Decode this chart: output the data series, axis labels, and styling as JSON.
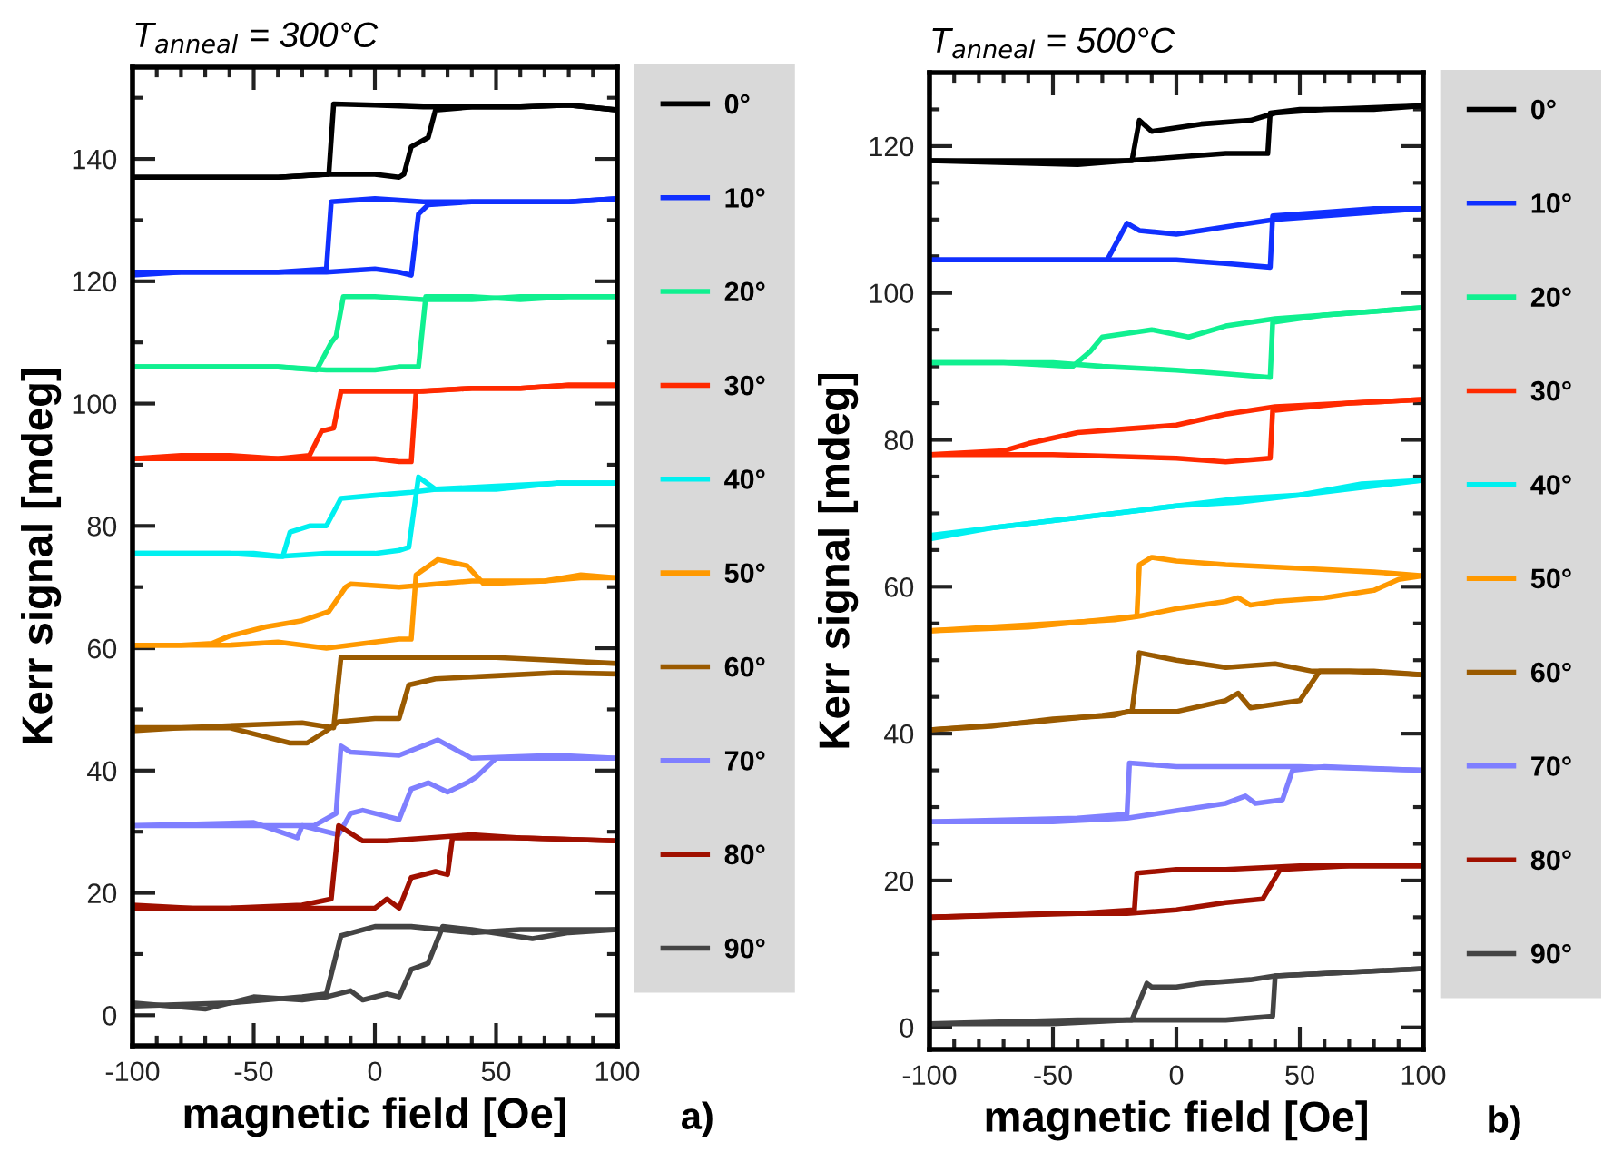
{
  "chart_data": [
    {
      "type": "line",
      "title": "T$_{anneal}$ = 300°C",
      "xlabel": "magnetic field [Oe]",
      "ylabel": "Kerr signal [mdeg]",
      "annotations": [
        "a)"
      ],
      "xlim": [
        -100,
        100
      ],
      "xticks": [
        -100,
        {
          "value": -90,
          "label": null
        },
        {
          "value": -80,
          "label": null
        },
        {
          "value": -70,
          "label": null
        },
        {
          "value": -60,
          "label": null
        },
        -50,
        {
          "value": -40,
          "label": null
        },
        {
          "value": -30,
          "label": null
        },
        {
          "value": -20,
          "label": null
        },
        {
          "value": -10,
          "label": null
        },
        0,
        {
          "value": 10,
          "label": null
        },
        {
          "value": 20,
          "label": null
        },
        {
          "value": 30,
          "label": null
        },
        {
          "value": 40,
          "label": null
        },
        50,
        {
          "value": 60,
          "label": null
        },
        {
          "value": 70,
          "label": null
        },
        {
          "value": 80,
          "label": null
        },
        {
          "value": 90,
          "label": null
        },
        100
      ],
      "ylim": [
        -5,
        155
      ],
      "yticks": [
        0,
        {
          "value": 10,
          "label": null
        },
        20,
        {
          "value": 30,
          "label": null
        },
        40,
        {
          "value": 50,
          "label": null
        },
        60,
        {
          "value": 70,
          "label": null
        },
        80,
        {
          "value": 90,
          "label": null
        },
        100,
        {
          "value": 110,
          "label": null
        },
        120,
        {
          "value": 130,
          "label": null
        },
        140,
        {
          "value": 150,
          "label": null
        }
      ],
      "grid": false,
      "legend": "right",
      "marker": "none",
      "line_style": "solid",
      "series": [
        {
          "name": "0°",
          "color": "#000000",
          "x": [
            -100,
            -80,
            -60,
            -40,
            -20,
            0,
            10,
            12,
            15,
            22,
            25,
            40,
            60,
            80,
            100
          ],
          "values": [
            137,
            137,
            137,
            137,
            137.5,
            137.5,
            137,
            137.5,
            142,
            143.5,
            148,
            148.5,
            148.5,
            148.8,
            148
          ]
        },
        {
          "color": "#000000",
          "x": [
            -100,
            -80,
            -60,
            -40,
            -19,
            -17,
            0,
            20,
            40,
            60,
            80,
            100
          ],
          "values": [
            137,
            137,
            137,
            137,
            137.5,
            149,
            148.8,
            148.5,
            148.5,
            148.5,
            148.8,
            148
          ]
        },
        {
          "name": "10°",
          "color": "#1030ff",
          "x": [
            -100,
            -80,
            -60,
            -40,
            -20,
            0,
            10,
            15,
            18,
            22,
            40,
            60,
            80,
            100
          ],
          "values": [
            121,
            121.5,
            121.5,
            121.5,
            121.5,
            122,
            121.5,
            121,
            131,
            132.5,
            133,
            133,
            133,
            133.5
          ]
        },
        {
          "color": "#1030ff",
          "x": [
            -100,
            -80,
            -60,
            -40,
            -20,
            -18,
            0,
            20,
            40,
            60,
            80,
            100
          ],
          "values": [
            121.5,
            121.5,
            121.5,
            121.5,
            122,
            133,
            133.5,
            133,
            133,
            133,
            133,
            133.5
          ]
        },
        {
          "name": "20°",
          "color": "#10f090",
          "x": [
            -100,
            -80,
            -60,
            -40,
            -20,
            0,
            10,
            18,
            21,
            40,
            60,
            80,
            100
          ],
          "values": [
            106,
            106,
            106,
            106,
            105.5,
            105.5,
            106,
            106,
            117.5,
            117.5,
            117,
            117.5,
            117.5
          ]
        },
        {
          "color": "#10f090",
          "x": [
            -100,
            -80,
            -60,
            -40,
            -24,
            -18,
            -16,
            -13,
            0,
            20,
            40,
            60,
            80,
            100
          ],
          "values": [
            106,
            106,
            106,
            106,
            105.5,
            110,
            111,
            117.5,
            117.5,
            117,
            117,
            117.5,
            117.5,
            117.5
          ]
        },
        {
          "name": "30°",
          "color": "#ff2a00",
          "x": [
            -100,
            -80,
            -60,
            -40,
            -20,
            0,
            10,
            15,
            17,
            40,
            60,
            80,
            100
          ],
          "values": [
            91,
            91.5,
            91.5,
            91,
            91,
            91,
            90.5,
            90.5,
            102,
            102.5,
            102.5,
            103,
            103
          ]
        },
        {
          "color": "#ff2a00",
          "x": [
            -100,
            -80,
            -60,
            -40,
            -27,
            -22,
            -17,
            -14,
            0,
            20,
            40,
            60,
            80,
            100
          ],
          "values": [
            91,
            91,
            91,
            91,
            91.5,
            95.5,
            96,
            102,
            102,
            102,
            102.5,
            102.5,
            103,
            103
          ]
        },
        {
          "name": "40°",
          "color": "#00f0f0",
          "x": [
            -100,
            -80,
            -60,
            -40,
            -20,
            0,
            10,
            14,
            18,
            25,
            50,
            75,
            100
          ],
          "values": [
            75.5,
            75.5,
            75.5,
            75,
            75.5,
            75.5,
            76,
            76.5,
            88,
            86,
            86.5,
            87,
            87
          ]
        },
        {
          "color": "#00f0f0",
          "x": [
            -100,
            -75,
            -50,
            -38,
            -35,
            -27,
            -20,
            -14,
            0,
            15,
            25,
            50,
            75,
            100
          ],
          "values": [
            75.5,
            75.5,
            75.5,
            75,
            79,
            80,
            80,
            84.5,
            85,
            85.5,
            86,
            86,
            87,
            87
          ]
        },
        {
          "name": "50°",
          "color": "#ff9900",
          "x": [
            -100,
            -80,
            -60,
            -40,
            -20,
            0,
            10,
            15,
            17,
            26,
            38,
            45,
            70,
            85,
            100
          ],
          "values": [
            60.5,
            60.5,
            60.5,
            61,
            60,
            61,
            61.5,
            61.5,
            72,
            74.5,
            73.5,
            70.5,
            71,
            72,
            71.5
          ]
        },
        {
          "color": "#ff9900",
          "x": [
            -100,
            -80,
            -67,
            -60,
            -45,
            -30,
            -19,
            -12,
            -10,
            10,
            40,
            70,
            85,
            100
          ],
          "values": [
            60.5,
            60.5,
            60.8,
            62,
            63.5,
            64.5,
            66,
            70,
            70.5,
            70,
            71,
            71,
            71.5,
            71.5
          ]
        },
        {
          "name": "60°",
          "color": "#9a5a00",
          "x": [
            -100,
            -80,
            -60,
            -50,
            -35,
            -28,
            -20,
            -15,
            0,
            10,
            14,
            25,
            50,
            75,
            100
          ],
          "values": [
            47,
            47,
            47,
            46,
            44.5,
            44.5,
            46.5,
            48,
            48.5,
            48.5,
            54,
            55,
            55.5,
            56,
            55.8
          ]
        },
        {
          "color": "#9a5a00",
          "x": [
            -100,
            -80,
            -50,
            -30,
            -17,
            -14,
            0,
            25,
            50,
            75,
            100
          ],
          "values": [
            46.5,
            47,
            47.5,
            47.8,
            47,
            58.5,
            58.5,
            58.5,
            58.5,
            58,
            57.5
          ]
        },
        {
          "name": "70°",
          "color": "#7f7fff",
          "x": [
            -100,
            -50,
            -32,
            -30,
            -15,
            -10,
            -5,
            5,
            10,
            12,
            15,
            22,
            30,
            38,
            42,
            50,
            75,
            100
          ],
          "values": [
            31,
            31.5,
            29,
            31,
            29.5,
            33,
            33.5,
            32.5,
            32,
            34,
            37,
            38,
            36.5,
            38,
            39,
            42,
            42,
            42
          ]
        },
        {
          "color": "#7f7fff",
          "x": [
            -100,
            -50,
            -25,
            -16,
            -14,
            -10,
            10,
            26,
            40,
            75,
            100
          ],
          "values": [
            31,
            31,
            31,
            33,
            44,
            43,
            42.5,
            45,
            42,
            42.5,
            42
          ]
        },
        {
          "name": "80°",
          "color": "#a01000",
          "x": [
            -100,
            -75,
            -50,
            -20,
            0,
            5,
            10,
            15,
            25,
            30,
            32,
            60,
            100
          ],
          "values": [
            18,
            17.5,
            17.5,
            17.5,
            17.5,
            19,
            17.5,
            22.5,
            23.5,
            23,
            29,
            29,
            28.5
          ]
        },
        {
          "color": "#a01000",
          "x": [
            -100,
            -60,
            -30,
            -18,
            -15,
            -5,
            5,
            40,
            60,
            100
          ],
          "values": [
            17.5,
            17.5,
            18,
            19,
            31,
            28.5,
            28.5,
            29.5,
            29,
            28.5
          ]
        },
        {
          "name": "90°",
          "color": "#444444",
          "x": [
            -100,
            -70,
            -50,
            -30,
            -20,
            -10,
            -5,
            5,
            10,
            15,
            22,
            28,
            40,
            65,
            80,
            100
          ],
          "values": [
            2,
            1,
            3,
            2.5,
            3,
            4,
            2.5,
            3.5,
            3,
            7.5,
            8.5,
            14.5,
            14,
            12.5,
            13.5,
            14
          ]
        },
        {
          "color": "#444444",
          "x": [
            -100,
            -60,
            -30,
            -20,
            -14,
            0,
            15,
            40,
            60,
            100
          ],
          "values": [
            1.5,
            2,
            3,
            3.5,
            13,
            14.5,
            14.5,
            13.5,
            14,
            14
          ]
        }
      ]
    },
    {
      "type": "line",
      "title": "T$_{anneal}$ = 500°C",
      "xlabel": "magnetic field [Oe]",
      "ylabel": "Kerr signal [mdeg]",
      "annotations": [
        "b)"
      ],
      "xlim": [
        -100,
        100
      ],
      "xticks": [
        -100,
        {
          "value": -90,
          "label": null
        },
        {
          "value": -80,
          "label": null
        },
        {
          "value": -70,
          "label": null
        },
        {
          "value": -60,
          "label": null
        },
        -50,
        {
          "value": -40,
          "label": null
        },
        {
          "value": -30,
          "label": null
        },
        {
          "value": -20,
          "label": null
        },
        {
          "value": -10,
          "label": null
        },
        0,
        {
          "value": 10,
          "label": null
        },
        {
          "value": 20,
          "label": null
        },
        {
          "value": 30,
          "label": null
        },
        {
          "value": 40,
          "label": null
        },
        50,
        {
          "value": 60,
          "label": null
        },
        {
          "value": 70,
          "label": null
        },
        {
          "value": 80,
          "label": null
        },
        {
          "value": 90,
          "label": null
        },
        100
      ],
      "ylim": [
        -3,
        130
      ],
      "yticks": [
        0,
        {
          "value": 5,
          "label": null
        },
        {
          "value": 10,
          "label": null
        },
        {
          "value": 15,
          "label": null
        },
        20,
        {
          "value": 25,
          "label": null
        },
        {
          "value": 30,
          "label": null
        },
        {
          "value": 35,
          "label": null
        },
        40,
        {
          "value": 45,
          "label": null
        },
        {
          "value": 50,
          "label": null
        },
        {
          "value": 55,
          "label": null
        },
        60,
        {
          "value": 65,
          "label": null
        },
        {
          "value": 70,
          "label": null
        },
        {
          "value": 75,
          "label": null
        },
        80,
        {
          "value": 85,
          "label": null
        },
        {
          "value": 90,
          "label": null
        },
        {
          "value": 95,
          "label": null
        },
        100,
        {
          "value": 105,
          "label": null
        },
        {
          "value": 110,
          "label": null
        },
        {
          "value": 115,
          "label": null
        },
        120,
        {
          "value": 125,
          "label": null
        }
      ],
      "grid": false,
      "legend": "right",
      "marker": "none",
      "line_style": "solid",
      "series": [
        {
          "name": "0°",
          "color": "#000000",
          "x": [
            -100,
            -40,
            -20,
            0,
            20,
            37,
            38,
            50,
            80,
            100
          ],
          "values": [
            118,
            117.5,
            118,
            118.5,
            119,
            119,
            124.5,
            125,
            125,
            125.5
          ]
        },
        {
          "color": "#000000",
          "x": [
            -100,
            -50,
            -18,
            -15,
            -10,
            0,
            10,
            30,
            40,
            60,
            100
          ],
          "values": [
            118,
            118,
            118,
            123.5,
            122,
            122.5,
            123,
            123.5,
            124.5,
            125,
            125.5
          ]
        },
        {
          "name": "10°",
          "color": "#1030ff",
          "x": [
            -100,
            -50,
            0,
            20,
            38,
            39,
            60,
            80,
            100
          ],
          "values": [
            104.5,
            104.5,
            104.5,
            104,
            103.5,
            110.5,
            111,
            111.5,
            111.5
          ]
        },
        {
          "color": "#1030ff",
          "x": [
            -100,
            -60,
            -28,
            -24,
            -20,
            -15,
            0,
            10,
            30,
            40,
            80,
            100
          ],
          "values": [
            104.5,
            104.5,
            104.5,
            107,
            109.5,
            108.5,
            108,
            108.5,
            109.5,
            110,
            111,
            111.5
          ]
        },
        {
          "name": "20°",
          "color": "#10f090",
          "x": [
            -100,
            -50,
            -30,
            0,
            20,
            38,
            39,
            60,
            80,
            100
          ],
          "values": [
            90.5,
            90.5,
            90,
            89.5,
            89,
            88.5,
            96,
            97,
            97.5,
            98
          ]
        },
        {
          "color": "#10f090",
          "x": [
            -100,
            -70,
            -42,
            -35,
            -30,
            -20,
            -10,
            5,
            20,
            40,
            80,
            100
          ],
          "values": [
            90.5,
            90.5,
            90,
            92,
            94,
            94.5,
            95,
            94,
            95.5,
            96.5,
            97.5,
            98
          ]
        },
        {
          "name": "30°",
          "color": "#ff2a00",
          "x": [
            -100,
            -50,
            0,
            20,
            38,
            39,
            70,
            100
          ],
          "values": [
            78,
            78,
            77.5,
            77,
            77.5,
            84,
            85,
            85.5
          ]
        },
        {
          "color": "#ff2a00",
          "x": [
            -100,
            -70,
            -60,
            -40,
            -20,
            0,
            20,
            40,
            70,
            100
          ],
          "values": [
            78,
            78.5,
            79.5,
            81,
            81.5,
            82,
            83.5,
            84.5,
            85,
            85.5
          ]
        },
        {
          "name": "40°",
          "color": "#00f0f0",
          "x": [
            -100,
            -75,
            -50,
            -25,
            0,
            25,
            50,
            75,
            100
          ],
          "values": [
            66.5,
            68,
            69,
            70,
            71,
            72,
            72.5,
            74,
            74.5
          ]
        },
        {
          "color": "#00f0f0",
          "x": [
            -100,
            -75,
            -50,
            -25,
            0,
            25,
            50,
            75,
            100
          ],
          "values": [
            67,
            68,
            69,
            70,
            71,
            71.5,
            72.5,
            73.5,
            74.5
          ]
        },
        {
          "name": "50°",
          "color": "#ff9900",
          "x": [
            -100,
            -75,
            -50,
            -25,
            -15,
            0,
            20,
            25,
            30,
            40,
            60,
            80,
            90,
            100
          ],
          "values": [
            54,
            54.5,
            55,
            55.5,
            56,
            57,
            58,
            58.5,
            57.5,
            58,
            58.5,
            59.5,
            61,
            61.5
          ]
        },
        {
          "color": "#ff9900",
          "x": [
            -100,
            -60,
            -30,
            -16,
            -15,
            -10,
            0,
            20,
            50,
            80,
            100
          ],
          "values": [
            54,
            54.5,
            55.5,
            56,
            63,
            64,
            63.5,
            63,
            62.5,
            62,
            61.5
          ]
        },
        {
          "name": "60°",
          "color": "#9a5a00",
          "x": [
            -100,
            -75,
            -50,
            -25,
            -20,
            0,
            20,
            25,
            30,
            40,
            50,
            58,
            80,
            100
          ],
          "values": [
            40.5,
            41,
            42,
            42.5,
            43,
            43,
            44.5,
            45.5,
            43.5,
            44,
            44.5,
            48.5,
            48.5,
            48
          ]
        },
        {
          "color": "#9a5a00",
          "x": [
            -100,
            -60,
            -30,
            -18,
            -15,
            0,
            20,
            40,
            55,
            70,
            100
          ],
          "values": [
            40.5,
            41.5,
            42.5,
            43,
            51,
            50,
            49,
            49.5,
            48.5,
            48.5,
            48
          ]
        },
        {
          "name": "70°",
          "color": "#7f7fff",
          "x": [
            -100,
            -50,
            -20,
            0,
            20,
            28,
            32,
            43,
            47,
            60,
            100
          ],
          "values": [
            28,
            28,
            28.5,
            29.5,
            30.5,
            31.5,
            30.5,
            31,
            35,
            35.5,
            35
          ]
        },
        {
          "color": "#7f7fff",
          "x": [
            -100,
            -40,
            -20,
            -19,
            0,
            50,
            100
          ],
          "values": [
            28,
            28.5,
            29,
            36,
            35.5,
            35.5,
            35
          ]
        },
        {
          "name": "80°",
          "color": "#a01000",
          "x": [
            -100,
            -50,
            -20,
            0,
            20,
            35,
            42,
            70,
            100
          ],
          "values": [
            15,
            15.5,
            15.5,
            16,
            17,
            17.5,
            21.5,
            22,
            22
          ]
        },
        {
          "color": "#a01000",
          "x": [
            -100,
            -40,
            -17,
            -16,
            0,
            20,
            50,
            100
          ],
          "values": [
            15,
            15.5,
            16,
            21,
            21.5,
            21.5,
            22,
            22
          ]
        },
        {
          "name": "90°",
          "color": "#444444",
          "x": [
            -100,
            -50,
            -20,
            0,
            20,
            39,
            40,
            70,
            100
          ],
          "values": [
            0.5,
            0.5,
            1,
            1,
            1,
            1.5,
            7,
            7.5,
            8
          ]
        },
        {
          "color": "#444444",
          "x": [
            -100,
            -40,
            -18,
            -12,
            -10,
            0,
            10,
            30,
            40,
            100
          ],
          "values": [
            0.5,
            1,
            1,
            6,
            5.5,
            5.5,
            6,
            6.5,
            7,
            8
          ]
        }
      ]
    }
  ]
}
